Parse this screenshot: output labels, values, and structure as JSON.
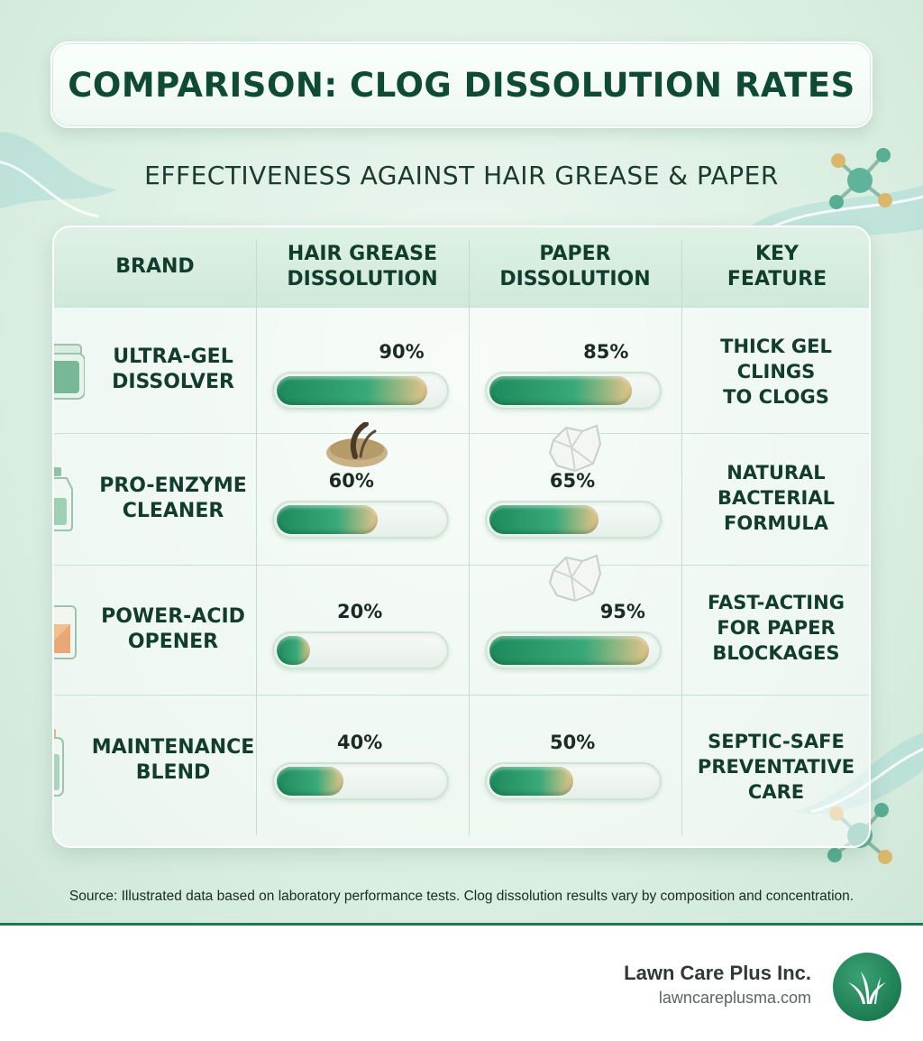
{
  "header": {
    "title": "COMPARISON: CLOG DISSOLUTION RATES",
    "subtitle": "EFFECTIVENESS AGAINST HAIR GREASE & PAPER"
  },
  "table": {
    "columns": [
      "BRAND",
      "HAIR GREASE\nDISSOLUTION",
      "PAPER\nDISSOLUTION",
      "KEY\nFEATURE"
    ],
    "rows": [
      {
        "brand": "ULTRA-GEL\nDISSOLVER",
        "icon": "gel-jar-icon",
        "hair": 90,
        "hair_label": "90%",
        "paper": 85,
        "paper_label": "85%",
        "feature": "THICK GEL\nCLINGS\nTO CLOGS"
      },
      {
        "brand": "PRO-ENZYME\nCLEANER",
        "icon": "jug-bottle-icon",
        "hair": 60,
        "hair_label": "60%",
        "paper": 65,
        "paper_label": "65%",
        "feature": "NATURAL\nBACTERIAL\nFORMULA"
      },
      {
        "brand": "POWER-ACID\nOPENER",
        "icon": "canister-icon",
        "hair": 20,
        "hair_label": "20%",
        "paper": 95,
        "paper_label": "95%",
        "feature": "FAST-ACTING\nFOR PAPER\nBLOCKAGES"
      },
      {
        "brand": "MAINTENANCE\nBLEND",
        "icon": "slim-bottle-icon",
        "hair": 40,
        "hair_label": "40%",
        "paper": 50,
        "paper_label": "50%",
        "feature": "SEPTIC-SAFE\nPREVENTATIVE\nCARE"
      }
    ]
  },
  "chart_data": {
    "type": "bar",
    "title": "COMPARISON: CLOG DISSOLUTION RATES",
    "subtitle": "EFFECTIVENESS AGAINST HAIR GREASE & PAPER",
    "categories": [
      "ULTRA-GEL DISSOLVER",
      "PRO-ENZYME CLEANER",
      "POWER-ACID OPENER",
      "MAINTENANCE BLEND"
    ],
    "series": [
      {
        "name": "HAIR GREASE DISSOLUTION",
        "values": [
          90,
          60,
          20,
          40
        ]
      },
      {
        "name": "PAPER DISSOLUTION",
        "values": [
          85,
          65,
          95,
          50
        ]
      }
    ],
    "ylim": [
      0,
      100
    ],
    "unit": "%"
  },
  "source": "Source: Illustrated data based on laboratory performance tests. Clog dissolution results vary by composition and concentration.",
  "footer": {
    "company": "Lawn Care Plus Inc.",
    "url": "lawncareplusma.com",
    "brand_color": "#1e7c52"
  }
}
